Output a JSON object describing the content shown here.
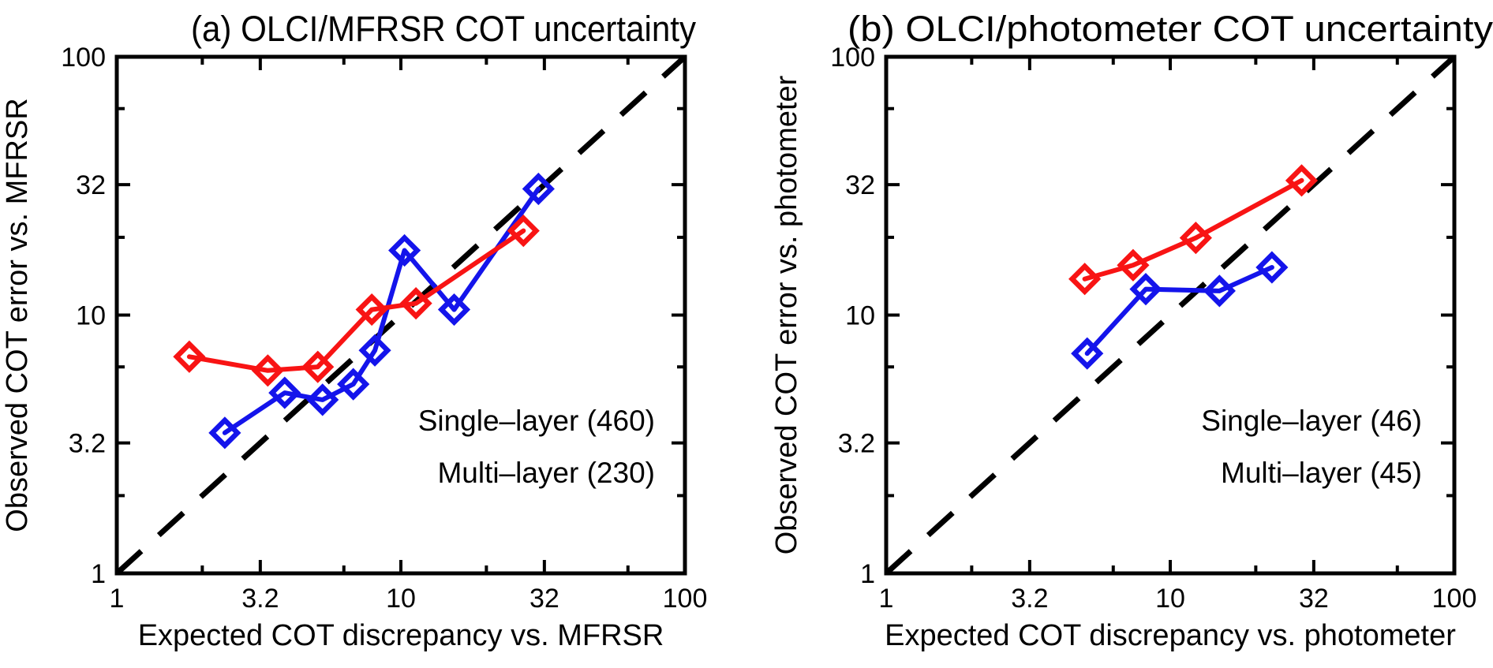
{
  "figure": {
    "background": "#ffffff",
    "axis_color": "#000000",
    "reference_line_color": "#000000",
    "single_layer_color": "#1414eb",
    "multi_layer_color": "#f81414"
  },
  "chart_data": [
    {
      "id": "a",
      "type": "line",
      "title": "(a) OLCI/MFRSR COT uncertainty",
      "xlabel": "Expected COT discrepancy vs. MFRSR",
      "ylabel": "Observed COT error vs. MFRSR",
      "scale": "log-log",
      "xlim": [
        1,
        100
      ],
      "ylim": [
        1,
        100
      ],
      "major_ticks": [
        1,
        3.2,
        10,
        32,
        100
      ],
      "major_tick_labels": [
        "1",
        "3.2",
        "10",
        "32",
        "100"
      ],
      "minor_ticks": [
        2,
        6.3,
        20,
        63
      ],
      "grid": false,
      "reference_line": {
        "style": "dashed",
        "from": [
          1,
          1
        ],
        "to": [
          100,
          100
        ],
        "meaning": "1:1 line"
      },
      "legend_position": "lower-right",
      "series": [
        {
          "name": "Single-layer",
          "legend_label": "Single–layer (460)",
          "sample_count": 460,
          "color": "#1414eb",
          "marker": "open-diamond",
          "points": [
            [
              2.4,
              3.5
            ],
            [
              3.9,
              5.0
            ],
            [
              5.3,
              4.7
            ],
            [
              6.8,
              5.4
            ],
            [
              8.1,
              7.3
            ],
            [
              10.3,
              17.8
            ],
            [
              15.4,
              10.5
            ],
            [
              30.5,
              30.8
            ]
          ]
        },
        {
          "name": "Multi-layer",
          "legend_label": "Multi–layer (230)",
          "sample_count": 230,
          "color": "#f81414",
          "marker": "open-diamond",
          "points": [
            [
              1.8,
              6.9
            ],
            [
              3.4,
              6.1
            ],
            [
              5.1,
              6.3
            ],
            [
              7.9,
              10.5
            ],
            [
              11.3,
              11.1
            ],
            [
              27.0,
              21.2
            ]
          ]
        }
      ]
    },
    {
      "id": "b",
      "type": "line",
      "title": "(b) OLCI/photometer COT uncertainty",
      "xlabel": "Expected COT discrepancy vs. photometer",
      "ylabel": "Observed COT error vs. photometer",
      "scale": "log-log",
      "xlim": [
        1,
        100
      ],
      "ylim": [
        1,
        100
      ],
      "major_ticks": [
        1,
        3.2,
        10,
        32,
        100
      ],
      "major_tick_labels": [
        "1",
        "3.2",
        "10",
        "32",
        "100"
      ],
      "minor_ticks": [
        2,
        6.3,
        20,
        63
      ],
      "grid": false,
      "reference_line": {
        "style": "dashed",
        "from": [
          1,
          1
        ],
        "to": [
          100,
          100
        ],
        "meaning": "1:1 line"
      },
      "legend_position": "lower-right",
      "series": [
        {
          "name": "Single-layer",
          "legend_label": "Single–layer (46)",
          "sample_count": 46,
          "color": "#1414eb",
          "marker": "open-diamond",
          "points": [
            [
              5.1,
              7.1
            ],
            [
              8.2,
              12.6
            ],
            [
              14.9,
              12.4
            ],
            [
              22.8,
              15.3
            ]
          ]
        },
        {
          "name": "Multi-layer",
          "legend_label": "Multi–layer (45)",
          "sample_count": 45,
          "color": "#f81414",
          "marker": "open-diamond",
          "points": [
            [
              5.0,
              13.8
            ],
            [
              7.4,
              15.6
            ],
            [
              12.3,
              19.9
            ],
            [
              29.0,
              33.2
            ]
          ]
        }
      ]
    }
  ]
}
